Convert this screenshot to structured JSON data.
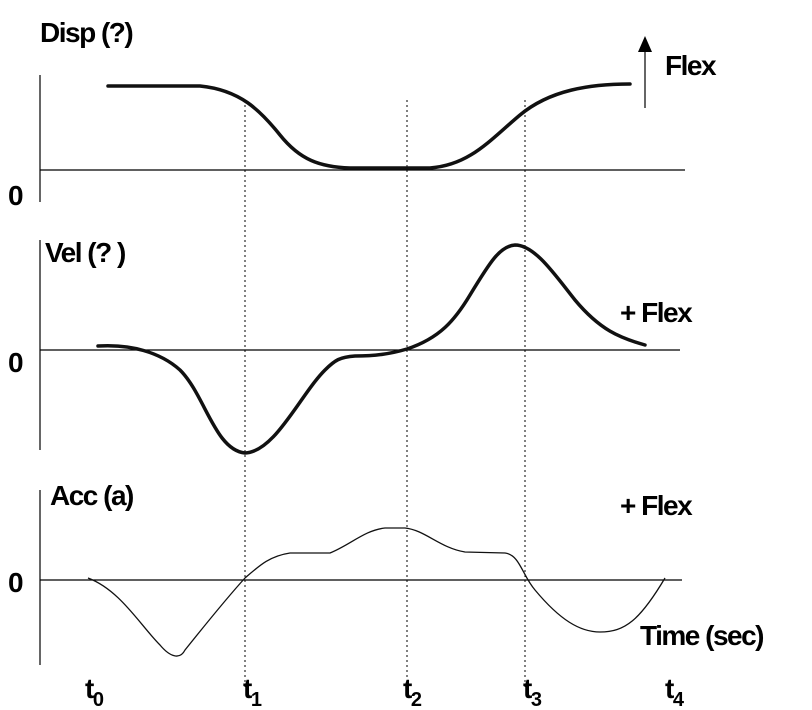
{
  "panels": [
    {
      "label": "Disp (?)",
      "zero": "0",
      "direction": "Flex"
    },
    {
      "label": "Vel (? )",
      "zero": "0",
      "direction": "+ Flex"
    },
    {
      "label": "Acc (a)",
      "zero": "0",
      "direction": "+ Flex"
    }
  ],
  "time_axis": {
    "label": "Time (sec)",
    "ticks": [
      {
        "base": "t",
        "sub": "0"
      },
      {
        "base": "t",
        "sub": "1"
      },
      {
        "base": "t",
        "sub": "2"
      },
      {
        "base": "t",
        "sub": "3"
      },
      {
        "base": "t",
        "sub": "4"
      }
    ]
  }
}
